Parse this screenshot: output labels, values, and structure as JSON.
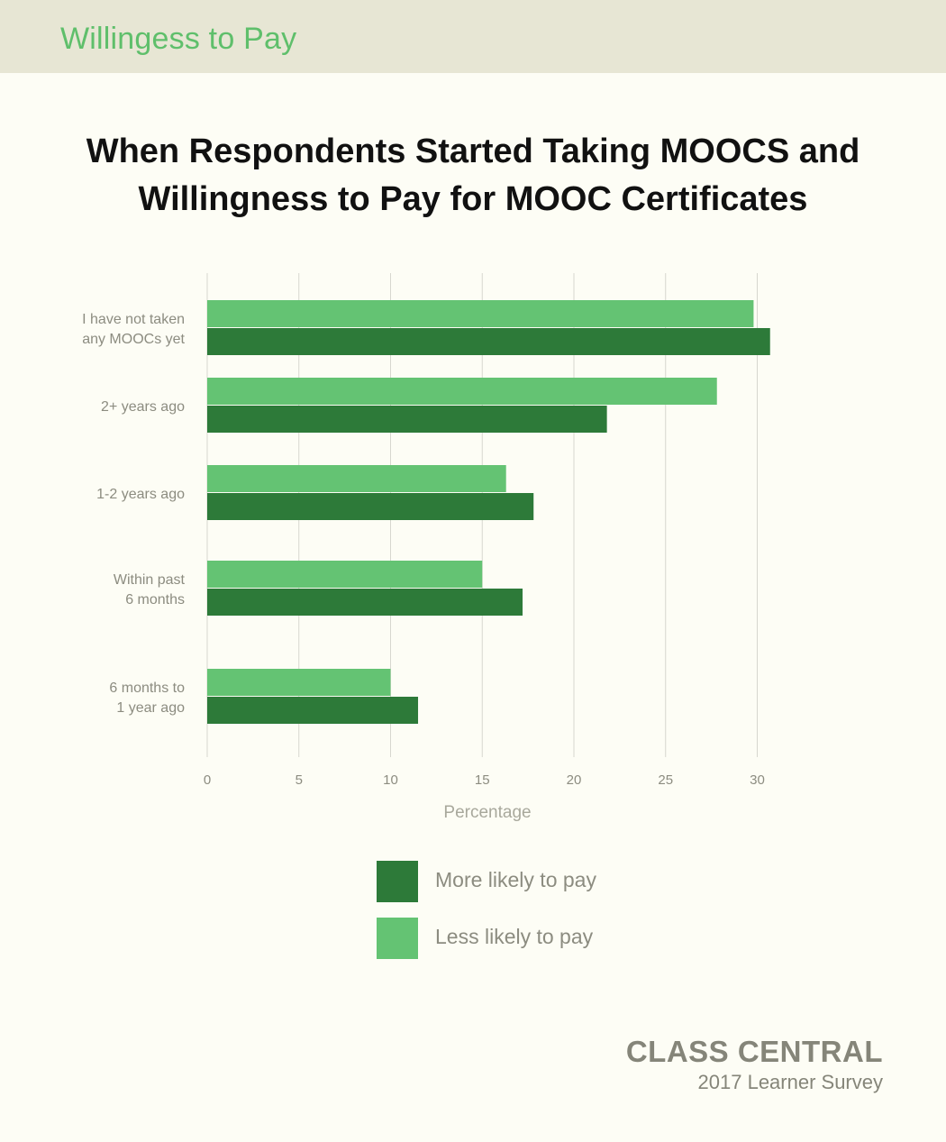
{
  "header": {
    "section_title": "Willingess to Pay"
  },
  "chart_data": {
    "type": "bar",
    "orientation": "horizontal",
    "title": "When Respondents Started Taking MOOCS and Willingness to Pay for MOOC Certificates",
    "categories": [
      [
        "I have not taken",
        "any MOOCs yet"
      ],
      [
        "2+ years ago"
      ],
      [
        "1-2 years ago"
      ],
      [
        "Within past",
        "6 months"
      ],
      [
        "6 months to",
        "1 year ago"
      ]
    ],
    "series": [
      {
        "name": "Less likely to pay",
        "color": "#64c373",
        "values": [
          29.8,
          27.8,
          16.3,
          15.0,
          10.0
        ]
      },
      {
        "name": "More likely to pay",
        "color": "#2d7a39",
        "values": [
          30.7,
          21.8,
          17.8,
          17.2,
          11.5
        ]
      }
    ],
    "xlabel": "Percentage",
    "ylabel": "",
    "xlim": [
      0,
      30
    ],
    "xticks": [
      0,
      5,
      10,
      15,
      20,
      25,
      30
    ],
    "grid": true,
    "legend_position": "bottom"
  },
  "legend": {
    "items": [
      {
        "label": "More likely to pay",
        "color": "#2d7a39"
      },
      {
        "label": "Less likely to pay",
        "color": "#64c373"
      }
    ]
  },
  "footer": {
    "brand": "CLASS CENTRAL",
    "subtitle": "2017 Learner Survey"
  },
  "colors": {
    "accent": "#5fbf6b",
    "header_bg": "#e7e6d4",
    "page_bg": "#fdfdf5"
  }
}
